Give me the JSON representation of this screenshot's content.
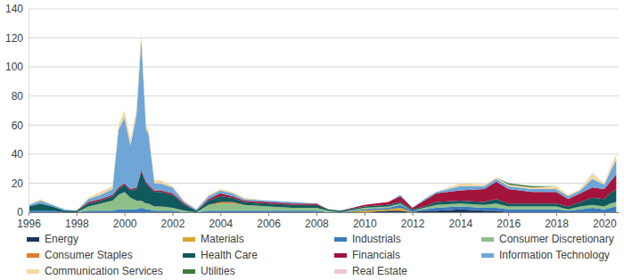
{
  "chart_data": {
    "type": "area",
    "stacked": true,
    "grid": true,
    "legend": "bottom",
    "x": [
      1996,
      1996.5,
      1997,
      1997.5,
      1998,
      1998.5,
      1999,
      1999.5,
      1999.75,
      2000,
      2000.25,
      2000.5,
      2000.7,
      2000.9,
      2001,
      2001.25,
      2001.5,
      2002,
      2002.5,
      2003,
      2003.5,
      2004,
      2004.5,
      2005,
      2006,
      2007,
      2008,
      2008.5,
      2009,
      2010,
      2011,
      2011.5,
      2012,
      2012.5,
      2013,
      2014,
      2015,
      2015.5,
      2016,
      2017,
      2018,
      2018.5,
      2019,
      2019.5,
      2020,
      2020.25,
      2020.5
    ],
    "xlim": [
      1996,
      2020.6
    ],
    "xticks": [
      1996,
      1998,
      2000,
      2002,
      2004,
      2006,
      2008,
      2010,
      2012,
      2014,
      2016,
      2018,
      2020
    ],
    "ylim": [
      0,
      140
    ],
    "yticks": [
      0,
      20,
      40,
      60,
      80,
      100,
      120,
      140
    ],
    "series": [
      {
        "name": "Energy",
        "color": "#1b365d",
        "values": [
          0,
          0,
          0,
          0,
          0,
          0,
          0,
          0,
          0,
          0,
          0,
          0,
          0,
          0,
          0,
          0,
          0,
          0,
          0,
          0,
          0,
          0,
          0,
          0,
          0,
          0,
          0,
          0,
          0,
          0,
          1,
          1,
          0,
          1,
          1,
          2,
          1,
          1,
          0,
          0,
          0,
          0,
          0,
          0,
          0,
          0,
          0
        ]
      },
      {
        "name": "Materials",
        "color": "#e0a526",
        "values": [
          0,
          0,
          0,
          0,
          0,
          0,
          0,
          0,
          0,
          0,
          0,
          0,
          0,
          0,
          0,
          0,
          0,
          0,
          0,
          0,
          0,
          0,
          0,
          0,
          0,
          0,
          0,
          0,
          0,
          1,
          1,
          2,
          0,
          0,
          0,
          0,
          0,
          0,
          0,
          0,
          0,
          0,
          0,
          0,
          0,
          0,
          0
        ]
      },
      {
        "name": "Industrials",
        "color": "#3b7bbf",
        "values": [
          1,
          1,
          1,
          0,
          0,
          1,
          1,
          1,
          2,
          2,
          2,
          2,
          3,
          2,
          2,
          1,
          1,
          1,
          0,
          0,
          1,
          1,
          1,
          1,
          1,
          1,
          1,
          0,
          0,
          1,
          1,
          2,
          1,
          1,
          2,
          2,
          2,
          2,
          2,
          2,
          2,
          1,
          2,
          3,
          2,
          3,
          4
        ]
      },
      {
        "name": "Consumer Discretionary",
        "color": "#8fbf88",
        "values": [
          0,
          0,
          0,
          0,
          0,
          3,
          5,
          7,
          10,
          12,
          8,
          6,
          5,
          4,
          4,
          3,
          3,
          2,
          1,
          0,
          4,
          5,
          5,
          4,
          3,
          2,
          2,
          1,
          0,
          1,
          1,
          1,
          0,
          1,
          2,
          2,
          2,
          3,
          2,
          2,
          2,
          1,
          2,
          2,
          2,
          3,
          3
        ]
      },
      {
        "name": "Consumer Staples",
        "color": "#e07b2a",
        "values": [
          0,
          0,
          0,
          0,
          0,
          0,
          0,
          0,
          0,
          0,
          0,
          0,
          0,
          0,
          0,
          0,
          0,
          0,
          0,
          0,
          0,
          1,
          1,
          0,
          0,
          0,
          0,
          0,
          0,
          0,
          0,
          0,
          0,
          0,
          0,
          0,
          0,
          0,
          0,
          0,
          0,
          0,
          0,
          0,
          0,
          0,
          0
        ]
      },
      {
        "name": "Health Care",
        "color": "#0f5a5c",
        "values": [
          3,
          5,
          3,
          1,
          1,
          2,
          2,
          3,
          4,
          5,
          5,
          8,
          20,
          14,
          12,
          10,
          10,
          9,
          4,
          1,
          3,
          4,
          3,
          2,
          2,
          2,
          2,
          1,
          1,
          1,
          1,
          1,
          1,
          1,
          2,
          2,
          2,
          3,
          2,
          2,
          2,
          2,
          3,
          5,
          5,
          7,
          9
        ]
      },
      {
        "name": "Financials",
        "color": "#a3143c",
        "values": [
          0,
          0,
          0,
          0,
          0,
          1,
          1,
          1,
          1,
          1,
          1,
          1,
          1,
          1,
          1,
          1,
          1,
          1,
          1,
          0,
          1,
          2,
          1,
          1,
          1,
          1,
          1,
          0,
          0,
          1,
          2,
          4,
          1,
          4,
          6,
          7,
          9,
          12,
          10,
          8,
          8,
          5,
          6,
          7,
          7,
          8,
          10
        ]
      },
      {
        "name": "Information Technology",
        "color": "#6fa6d8",
        "values": [
          1,
          2,
          1,
          1,
          0,
          2,
          3,
          4,
          40,
          45,
          30,
          50,
          90,
          36,
          35,
          5,
          5,
          4,
          1,
          1,
          2,
          2,
          2,
          1,
          1,
          1,
          0,
          0,
          0,
          0,
          0,
          1,
          0,
          1,
          1,
          3,
          2,
          2,
          2,
          2,
          2,
          2,
          2,
          6,
          3,
          7,
          10
        ]
      },
      {
        "name": "Communication Services",
        "color": "#f3d8a0",
        "values": [
          0,
          1,
          0,
          0,
          0,
          1,
          2,
          2,
          3,
          5,
          4,
          4,
          5,
          3,
          3,
          2,
          2,
          1,
          1,
          0,
          1,
          1,
          1,
          1,
          0,
          0,
          0,
          0,
          0,
          0,
          0,
          0,
          0,
          0,
          0,
          2,
          1,
          1,
          1,
          1,
          2,
          1,
          1,
          3,
          1,
          2,
          4
        ]
      },
      {
        "name": "Utilities",
        "color": "#3f7a3a",
        "values": [
          0,
          0,
          0,
          0,
          0,
          0,
          0,
          0,
          0,
          0,
          0,
          0,
          0,
          0,
          0,
          0,
          0,
          0,
          0,
          0,
          0,
          0,
          0,
          0,
          0,
          0,
          0,
          0,
          0,
          0,
          0,
          0,
          0,
          0,
          0,
          0,
          0,
          0,
          1,
          1,
          0,
          0,
          0,
          0,
          0,
          0,
          0
        ]
      },
      {
        "name": "Real Estate",
        "color": "#f4c6d0",
        "values": [
          0,
          0,
          0,
          0,
          0,
          0,
          0,
          0,
          0,
          0,
          0,
          0,
          0,
          0,
          0,
          0,
          0,
          0,
          0,
          0,
          0,
          0,
          0,
          0,
          0,
          0,
          0,
          0,
          0,
          0,
          0,
          0,
          0,
          0,
          0,
          0,
          0,
          0,
          0,
          0,
          0,
          0,
          0,
          1,
          0,
          1,
          0
        ]
      }
    ]
  }
}
